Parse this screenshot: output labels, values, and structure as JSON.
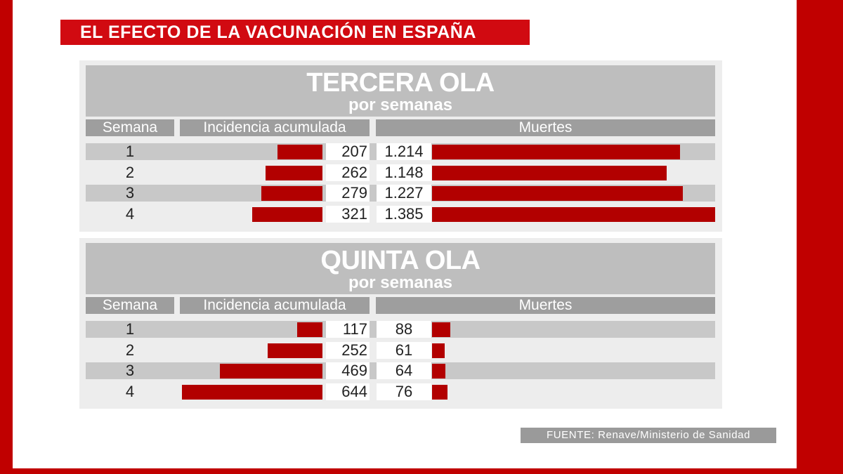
{
  "title": "EL EFECTO DE LA VACUNACIÓN EN ESPAÑA",
  "source": "FUENTE:  Renave/Ministerio de Sanidad",
  "colors": {
    "frame": "#c00000",
    "bar": "#b20000",
    "header_gray": "#bebebe",
    "column_gray": "#9e9e9e"
  },
  "chart_data": [
    {
      "type": "bar",
      "title": "TERCERA OLA",
      "subtitle": "por semanas",
      "columns": [
        "Semana",
        "Incidencia acumulada",
        "Muertes"
      ],
      "categories": [
        "1",
        "2",
        "3",
        "4"
      ],
      "series": [
        {
          "name": "Incidencia acumulada",
          "values": [
            207,
            262,
            279,
            321
          ],
          "labels": [
            "207",
            "262",
            "279",
            "321"
          ]
        },
        {
          "name": "Muertes",
          "values": [
            1214,
            1148,
            1227,
            1385
          ],
          "labels": [
            "1.214",
            "1.148",
            "1.227",
            "1.385"
          ]
        }
      ]
    },
    {
      "type": "bar",
      "title": "QUINTA OLA",
      "subtitle": "por semanas",
      "columns": [
        "Semana",
        "Incidencia acumulada",
        "Muertes"
      ],
      "categories": [
        "1",
        "2",
        "3",
        "4"
      ],
      "series": [
        {
          "name": "Incidencia acumulada",
          "values": [
            117,
            252,
            469,
            644
          ],
          "labels": [
            "117",
            "252",
            "469",
            "644"
          ]
        },
        {
          "name": "Muertes",
          "values": [
            88,
            61,
            64,
            76
          ],
          "labels": [
            "88",
            "61",
            "64",
            "76"
          ]
        }
      ]
    }
  ]
}
